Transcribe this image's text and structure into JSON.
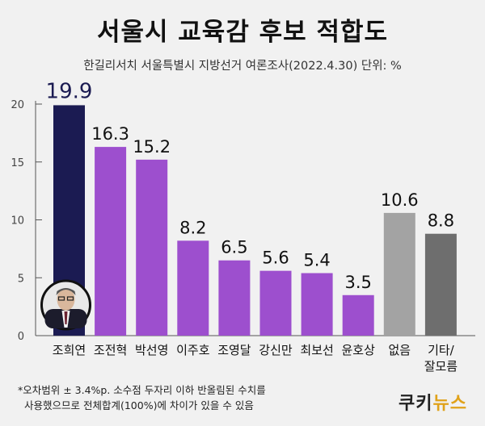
{
  "title": "서울시 교육감 후보 적합도",
  "subtitle": "한길리서치 서울특별시 지방선거 여론조사(2022.4.30) 단위: %",
  "note": [
    "*오차범위 ± 3.4%p. 소수점 두자리 이하 반올림된 수치를",
    "사용했으므로 전체합계(100%)에 차이가 있을 수 있음"
  ],
  "logo": {
    "part1": "쿠키",
    "part2": "뉴스"
  },
  "colors": {
    "highlight": "#1b1b52",
    "candidate": "#9d4fce",
    "none": "#a3a3a3",
    "other": "#6e6e6e",
    "highlight_label": "#1b1b52",
    "label": "#111111"
  },
  "chart_data": {
    "type": "bar",
    "categories": [
      "조희연",
      "조전혁",
      "박선영",
      "이주호",
      "조영달",
      "강신만",
      "최보선",
      "윤호상",
      "없음",
      "기타/\n잘모름"
    ],
    "values": [
      19.9,
      16.3,
      15.2,
      8.2,
      6.5,
      5.6,
      5.4,
      3.5,
      10.6,
      8.8
    ],
    "bar_colors": [
      "highlight",
      "candidate",
      "candidate",
      "candidate",
      "candidate",
      "candidate",
      "candidate",
      "candidate",
      "none",
      "other"
    ],
    "yticks": [
      0,
      5,
      10,
      15,
      20
    ],
    "ylim": [
      0,
      20
    ],
    "grid": false,
    "legend": "none",
    "title": "서울시 교육감 후보 적합도",
    "xlabel": "",
    "ylabel": ""
  }
}
